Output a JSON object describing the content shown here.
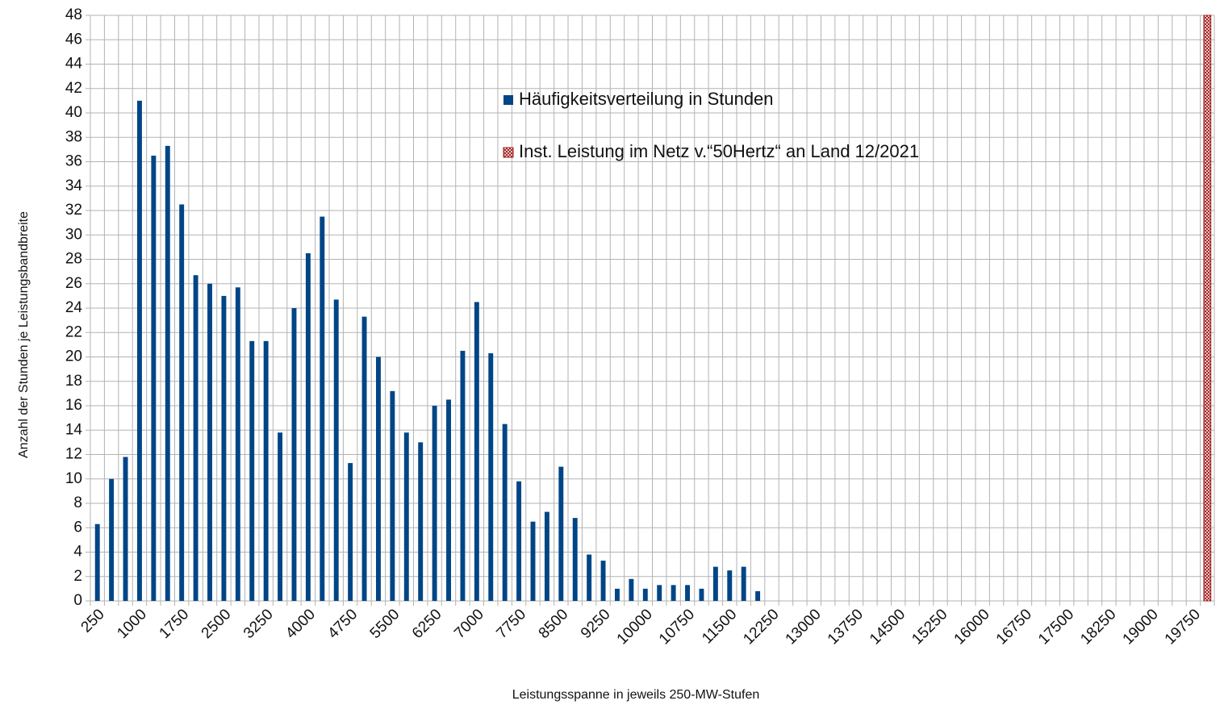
{
  "chart_data": {
    "type": "bar",
    "y_label": "Anzahl der Stunden je Leistungsbandbreite",
    "x_label": "Leistungsspanne in jeweils 250-MW-Stufen",
    "categories": [
      "250",
      null,
      null,
      "1000",
      null,
      null,
      "1750",
      null,
      null,
      "2500",
      null,
      null,
      "3250",
      null,
      null,
      "4000",
      null,
      null,
      "4750",
      null,
      null,
      "5500",
      null,
      null,
      "6250",
      null,
      null,
      "7000",
      null,
      null,
      "7750",
      null,
      null,
      "8500",
      null,
      null,
      "9250",
      null,
      null,
      "10000",
      null,
      null,
      "10750",
      null,
      null,
      "11500",
      null,
      null,
      "12250",
      null,
      null,
      "13000",
      null,
      null,
      "13750",
      null,
      null,
      "14500",
      null,
      null,
      "15250",
      null,
      null,
      "16000",
      null,
      null,
      "16750",
      null,
      null,
      "17500",
      null,
      null,
      "18250",
      null,
      null,
      "19000",
      null,
      null,
      "19750",
      null
    ],
    "series": [
      {
        "name": "Häufigkeitsverteilung in Stunden",
        "color": "#004586",
        "values": [
          6.3,
          10,
          11.8,
          41,
          36.5,
          37.3,
          32.5,
          26.7,
          26,
          25,
          25.7,
          21.3,
          21.3,
          13.8,
          24,
          28.5,
          31.5,
          24.7,
          11.3,
          23.3,
          20,
          17.2,
          13.8,
          13,
          16,
          16.5,
          20.5,
          24.5,
          20.3,
          14.5,
          9.8,
          6.5,
          7.3,
          11,
          6.8,
          3.8,
          3.3,
          1,
          1.8,
          1,
          1.3,
          1.3,
          1.3,
          1,
          2.8,
          2.5,
          2.8,
          0.8,
          null,
          null,
          null,
          null,
          null,
          null,
          null,
          null,
          null,
          null,
          null,
          null,
          null,
          null,
          null,
          null,
          null,
          null,
          null,
          null,
          null,
          null,
          null,
          null,
          null,
          null,
          null,
          null,
          null,
          null,
          null,
          null
        ]
      },
      {
        "name": "Inst. Leistung im Netz v.“50Hertz“ an Land 12/2021",
        "color": "#a01818",
        "hatch": true,
        "values": [
          null,
          null,
          null,
          null,
          null,
          null,
          null,
          null,
          null,
          null,
          null,
          null,
          null,
          null,
          null,
          null,
          null,
          null,
          null,
          null,
          null,
          null,
          null,
          null,
          null,
          null,
          null,
          null,
          null,
          null,
          null,
          null,
          null,
          null,
          null,
          null,
          null,
          null,
          null,
          null,
          null,
          null,
          null,
          null,
          null,
          null,
          null,
          null,
          null,
          null,
          null,
          null,
          null,
          null,
          null,
          null,
          null,
          null,
          null,
          null,
          null,
          null,
          null,
          null,
          null,
          null,
          null,
          null,
          null,
          null,
          null,
          null,
          null,
          null,
          null,
          null,
          null,
          null,
          null,
          48
        ]
      }
    ],
    "ylim": [
      0,
      48
    ],
    "yticks": [
      0,
      2,
      4,
      6,
      8,
      10,
      12,
      14,
      16,
      18,
      20,
      22,
      24,
      26,
      28,
      30,
      32,
      34,
      36,
      38,
      40,
      42,
      44,
      46,
      48
    ],
    "grid": true
  }
}
